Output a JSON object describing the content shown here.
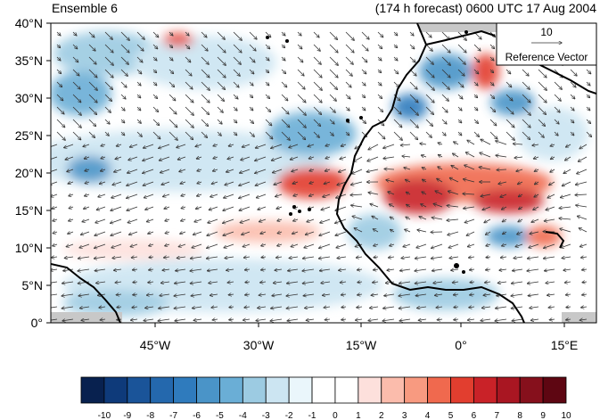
{
  "header": {
    "ensemble_label": "Ensemble 6",
    "forecast_label": "(174 h forecast) 0600 UTC 17 Aug 2004"
  },
  "map": {
    "lat_labels": [
      "40°N",
      "35°N",
      "30°N",
      "25°N",
      "20°N",
      "15°N",
      "10°N",
      "5°N",
      "0°"
    ],
    "lon_labels": [
      "45°W",
      "30°W",
      "15°W",
      "0°",
      "15°E"
    ],
    "lon_range": [
      -58,
      20
    ],
    "lat_range": [
      0,
      40
    ]
  },
  "reference_vector": {
    "value": "10",
    "label": "Reference Vector"
  },
  "colorbar": {
    "levels": [
      "-10",
      "-9",
      "-8",
      "-7",
      "-6",
      "-5",
      "-4",
      "-3",
      "-2",
      "-1",
      "0",
      "1",
      "2",
      "3",
      "4",
      "5",
      "6",
      "7",
      "8",
      "9",
      "10"
    ],
    "colors": [
      "#08214f",
      "#0e3a7a",
      "#1a5499",
      "#2468ad",
      "#2f7bbd",
      "#4a94c8",
      "#6aaed6",
      "#9ccbe2",
      "#cce5f2",
      "#eaf6fb",
      "#ffffff",
      "#ffffff",
      "#fde0dc",
      "#fbbcac",
      "#f89a80",
      "#f0694e",
      "#e23e2f",
      "#c92228",
      "#a91622",
      "#86101c",
      "#5e0612"
    ]
  },
  "colors": {
    "land_outline": "#000000",
    "missing": "#c8c8c8"
  }
}
